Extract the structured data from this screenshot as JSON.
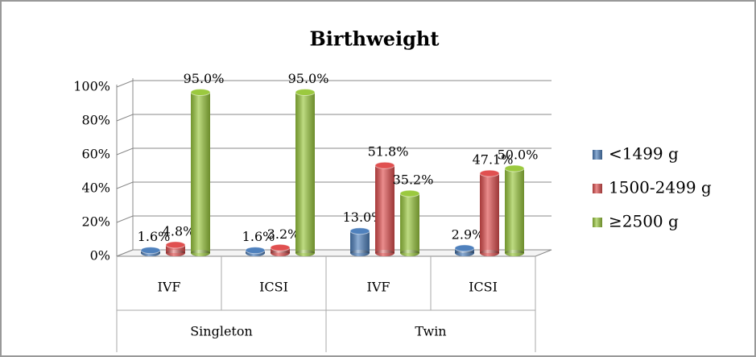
{
  "chart_data": {
    "type": "bar",
    "title": "Birthweight",
    "categories": [
      "IVF",
      "ICSI",
      "IVF",
      "ICSI"
    ],
    "groups": [
      "Singleton",
      "Twin"
    ],
    "series": [
      {
        "name": "<1499 g",
        "color": "#4f81bd",
        "values": [
          1.6,
          1.6,
          13.0,
          2.9
        ],
        "value_labels": [
          "1.6%",
          "1.6%",
          "13.0%",
          "2.9%"
        ]
      },
      {
        "name": "1500-2499 g",
        "color": "#e05050",
        "values": [
          4.8,
          3.2,
          51.8,
          47.1
        ],
        "value_labels": [
          "4.8%",
          "3.2%",
          "51.8%",
          "47.1%"
        ]
      },
      {
        "name": "≥2500 g",
        "color": "#9bc93f",
        "values": [
          95.0,
          95.0,
          35.2,
          50.0
        ],
        "value_labels": [
          "95.0%",
          "95.0%",
          "35.2%",
          "50.0%"
        ]
      }
    ],
    "ylim": [
      0,
      100
    ],
    "yticks": [
      {
        "value": 0,
        "label": "0%"
      },
      {
        "value": 20,
        "label": "20%"
      },
      {
        "value": 40,
        "label": "40%"
      },
      {
        "value": 60,
        "label": "60%"
      },
      {
        "value": 80,
        "label": "80%"
      },
      {
        "value": 100,
        "label": "100%"
      }
    ],
    "grid": true,
    "legend": "right"
  }
}
